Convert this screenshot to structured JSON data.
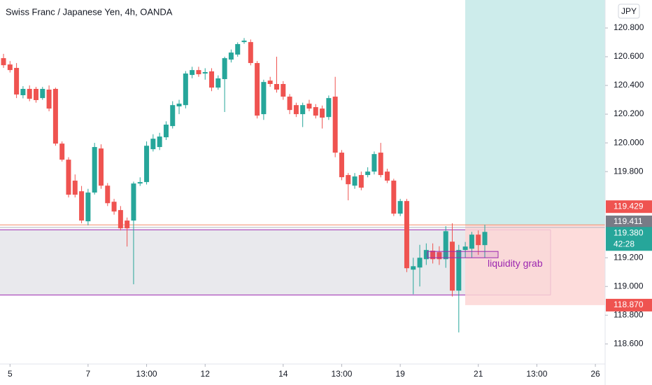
{
  "chart_data": {
    "type": "candlestick",
    "title": "Swiss Franc / Japanese Yen, 4h, OANDA",
    "currency": "JPY",
    "up_color": "#26a69a",
    "down_color": "#ef5350",
    "ylim": [
      118.46,
      120.995
    ],
    "yticks": [
      {
        "value": 120.8,
        "label": "120.800"
      },
      {
        "value": 120.6,
        "label": "120.600"
      },
      {
        "value": 120.4,
        "label": "120.400"
      },
      {
        "value": 120.2,
        "label": "120.200"
      },
      {
        "value": 120.0,
        "label": "120.000"
      },
      {
        "value": 119.8,
        "label": "119.800"
      },
      {
        "value": 119.2,
        "label": "119.200"
      },
      {
        "value": 119.0,
        "label": "119.000"
      },
      {
        "value": 118.8,
        "label": "118.800"
      },
      {
        "value": 118.6,
        "label": "118.600"
      }
    ],
    "xlim": [
      -0.54,
      92.5
    ],
    "xticks": [
      {
        "value": 1,
        "label": "5"
      },
      {
        "value": 13,
        "label": "7"
      },
      {
        "value": 22,
        "label": "13:00"
      },
      {
        "value": 31,
        "label": "12"
      },
      {
        "value": 43,
        "label": "14"
      },
      {
        "value": 52,
        "label": "13:00"
      },
      {
        "value": 61,
        "label": "19"
      },
      {
        "value": 73,
        "label": "21"
      },
      {
        "value": 82,
        "label": "13:00"
      },
      {
        "value": 91,
        "label": "26"
      }
    ],
    "candles": [
      [
        120.59,
        120.62,
        120.522,
        120.541
      ],
      [
        120.546,
        120.57,
        120.49,
        120.507
      ],
      [
        120.522,
        120.556,
        120.312,
        120.337
      ],
      [
        120.332,
        120.395,
        120.31,
        120.376
      ],
      [
        120.376,
        120.4,
        120.29,
        120.307
      ],
      [
        120.376,
        120.39,
        120.28,
        120.298
      ],
      [
        120.312,
        120.39,
        120.3,
        120.376
      ],
      [
        120.371,
        120.4,
        120.22,
        120.239
      ],
      [
        120.376,
        120.385,
        119.98,
        119.995
      ],
      [
        119.995,
        120.01,
        119.87,
        119.883
      ],
      [
        119.883,
        119.9,
        119.62,
        119.639
      ],
      [
        119.737,
        119.78,
        119.62,
        119.639
      ],
      [
        119.663,
        119.7,
        119.44,
        119.459
      ],
      [
        119.454,
        119.68,
        119.425,
        119.654
      ],
      [
        119.654,
        120.0,
        119.64,
        119.971
      ],
      [
        119.961,
        119.99,
        119.68,
        119.702
      ],
      [
        119.702,
        119.72,
        119.56,
        119.58
      ],
      [
        119.59,
        119.61,
        119.5,
        119.522
      ],
      [
        119.532,
        119.56,
        119.39,
        119.405
      ],
      [
        119.459,
        119.48,
        119.278,
        119.405
      ],
      [
        119.459,
        119.73,
        119.015,
        119.717
      ],
      [
        119.717,
        119.76,
        119.7,
        119.727
      ],
      [
        119.727,
        120.01,
        119.71,
        119.98
      ],
      [
        119.956,
        120.06,
        119.94,
        120.029
      ],
      [
        119.971,
        120.07,
        119.95,
        120.044
      ],
      [
        120.039,
        120.15,
        120.02,
        120.127
      ],
      [
        120.117,
        120.29,
        120.1,
        120.263
      ],
      [
        120.254,
        120.3,
        120.2,
        120.273
      ],
      [
        120.263,
        120.5,
        120.24,
        120.483
      ],
      [
        120.473,
        120.53,
        120.45,
        120.507
      ],
      [
        120.507,
        120.53,
        120.46,
        120.478
      ],
      [
        120.483,
        120.52,
        120.44,
        120.493
      ],
      [
        120.498,
        120.52,
        120.36,
        120.385
      ],
      [
        120.385,
        120.47,
        120.37,
        120.449
      ],
      [
        120.444,
        120.6,
        120.215,
        120.59
      ],
      [
        120.58,
        120.65,
        120.56,
        120.629
      ],
      [
        120.615,
        120.7,
        120.6,
        120.688
      ],
      [
        120.702,
        120.73,
        120.69,
        120.712
      ],
      [
        120.702,
        120.72,
        120.54,
        120.556
      ],
      [
        120.556,
        120.57,
        120.17,
        120.19
      ],
      [
        120.2,
        120.44,
        120.16,
        120.424
      ],
      [
        120.434,
        120.46,
        120.39,
        120.41
      ],
      [
        120.41,
        120.6,
        120.35,
        120.371
      ],
      [
        120.41,
        120.43,
        120.3,
        120.322
      ],
      [
        120.322,
        120.34,
        120.2,
        120.229
      ],
      [
        120.263,
        120.28,
        120.18,
        120.2
      ],
      [
        120.2,
        120.28,
        120.11,
        120.263
      ],
      [
        120.273,
        120.3,
        120.22,
        120.239
      ],
      [
        120.249,
        120.27,
        120.17,
        120.19
      ],
      [
        120.239,
        120.26,
        120.1,
        120.176
      ],
      [
        120.18,
        120.33,
        120.16,
        120.312
      ],
      [
        120.322,
        120.46,
        119.9,
        119.932
      ],
      [
        119.932,
        119.95,
        119.74,
        119.761
      ],
      [
        119.776,
        119.79,
        119.6,
        119.712
      ],
      [
        119.702,
        119.79,
        119.68,
        119.766
      ],
      [
        119.776,
        119.8,
        119.67,
        119.688
      ],
      [
        119.776,
        119.83,
        119.76,
        119.8
      ],
      [
        119.8,
        119.94,
        119.78,
        119.922
      ],
      [
        119.932,
        120.0,
        119.76,
        119.776
      ],
      [
        119.8,
        119.82,
        119.72,
        119.737
      ],
      [
        119.737,
        119.75,
        119.49,
        119.507
      ],
      [
        119.507,
        119.61,
        119.49,
        119.595
      ],
      [
        119.595,
        119.61,
        119.1,
        119.127
      ],
      [
        119.117,
        119.2,
        118.946,
        119.141
      ],
      [
        119.132,
        119.29,
        119.0,
        119.2
      ],
      [
        119.19,
        119.3,
        119.15,
        119.254
      ],
      [
        119.249,
        119.3,
        119.16,
        119.19
      ],
      [
        119.239,
        119.28,
        119.15,
        119.19
      ],
      [
        119.19,
        119.42,
        119.13,
        119.385
      ],
      [
        119.312,
        119.44,
        118.93,
        118.971
      ],
      [
        118.971,
        119.29,
        118.68,
        119.254
      ],
      [
        119.254,
        119.31,
        119.2,
        119.278
      ],
      [
        119.263,
        119.38,
        119.2,
        119.361
      ],
      [
        119.361,
        119.39,
        119.22,
        119.288
      ],
      [
        119.288,
        119.43,
        119.2,
        119.38
      ]
    ],
    "range_box": {
      "top": 119.395,
      "bottom": 118.941,
      "fill": "#e9e9ed",
      "border": "#9c27b0"
    },
    "liquidity_box": {
      "top": 119.244,
      "bottom": 119.2,
      "label": "liquidity grab",
      "color": "#9c27b0"
    },
    "position": {
      "entry": 119.429,
      "stop": 118.87,
      "profit_color": "#cdeceb",
      "loss_color": "#fdd6d5",
      "entry_color": "#f28b6b"
    },
    "price_labels": [
      {
        "value": 119.429,
        "label": "119.429",
        "color": "#ef5350"
      },
      {
        "value": 119.411,
        "label": "119.411",
        "color": "#787b86"
      },
      {
        "value": 119.38,
        "label": "119.380",
        "color": "#26a69a",
        "countdown": "42:28"
      },
      {
        "value": 118.87,
        "label": "118.870",
        "color": "#ef5350"
      }
    ]
  }
}
